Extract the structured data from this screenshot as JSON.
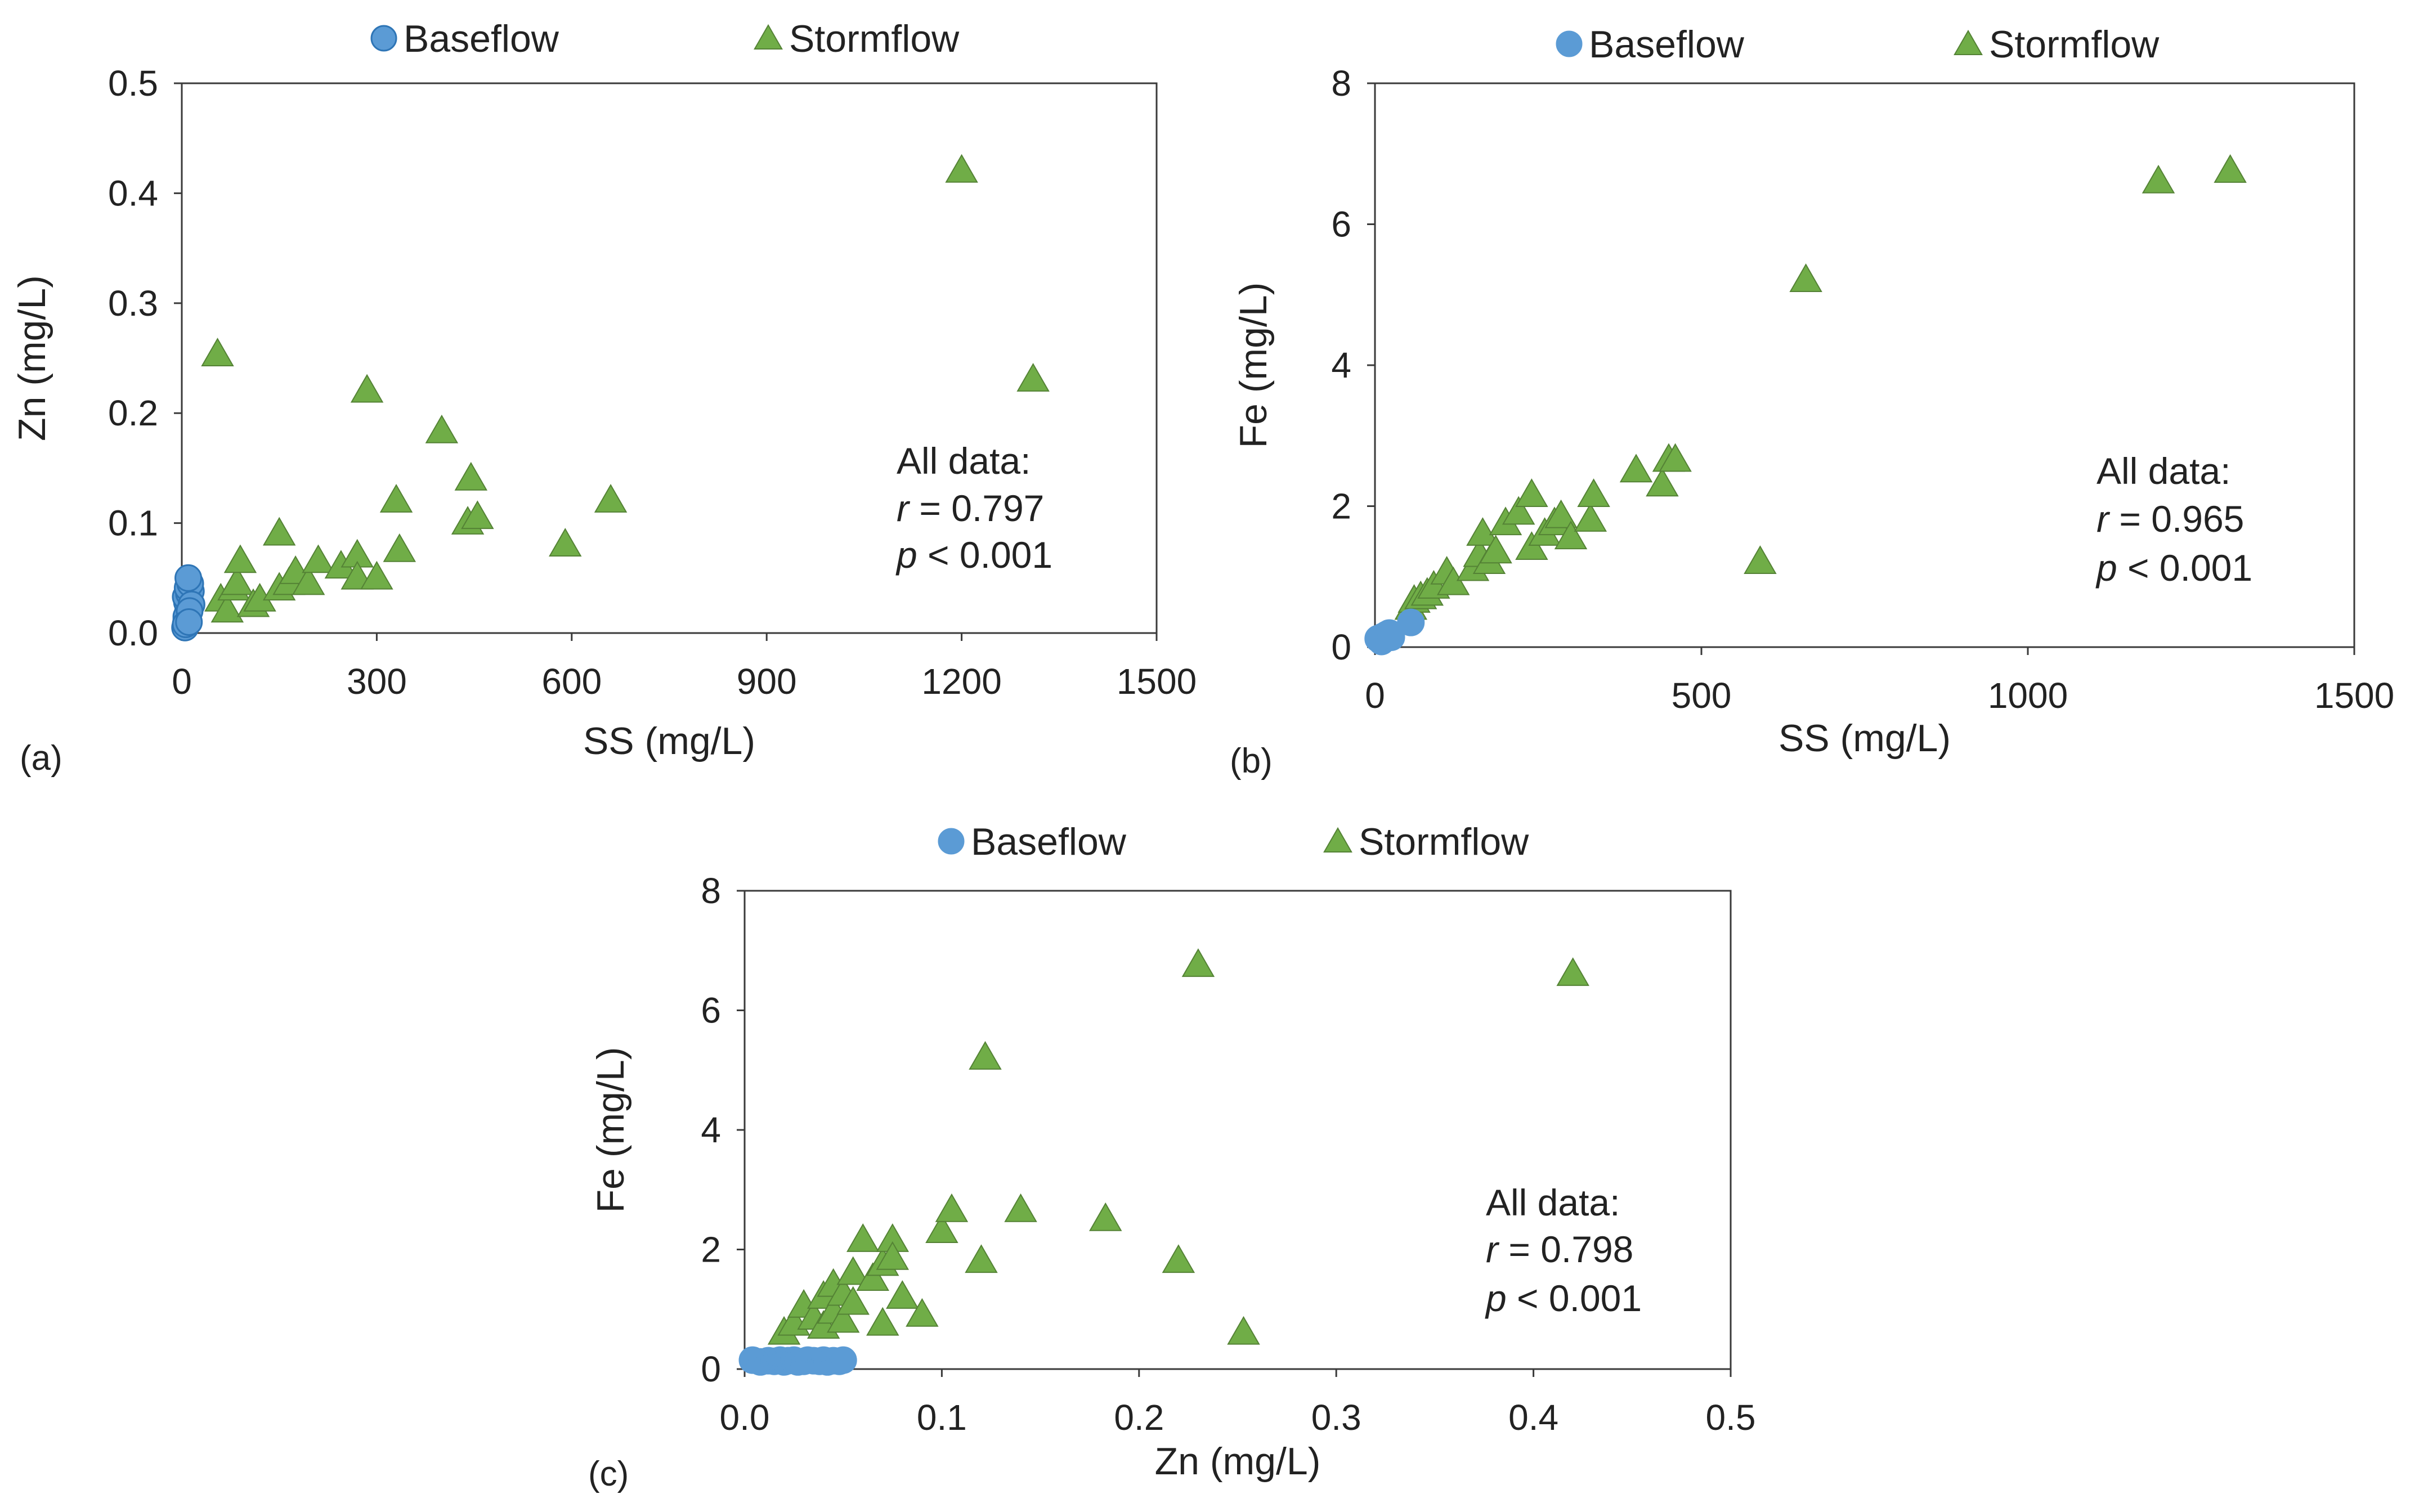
{
  "chart_data": [
    {
      "type": "scatter",
      "panel_label": "(a)",
      "xlabel": "SS (mg/L)",
      "ylabel": "Zn (mg/L)",
      "xlim": [
        0,
        1500
      ],
      "ylim": [
        0,
        0.5
      ],
      "xticks": [
        "0",
        "300",
        "600",
        "900",
        "1200",
        "1500"
      ],
      "yticks": [
        "0.0",
        "0.1",
        "0.2",
        "0.3",
        "0.4",
        "0.5"
      ],
      "legend": {
        "placement": "top",
        "entries": [
          "Baseflow",
          "Stormflow"
        ]
      },
      "annotation": {
        "line1": "All data:",
        "r_symbol": "r",
        "r_text": " = 0.797",
        "p_symbol": "p",
        "p_text": " < 0.001"
      },
      "series": [
        {
          "name": "Baseflow",
          "marker": "circle",
          "color": "#5B9BD5",
          "edge": "#2E75B6",
          "points": [
            [
              5,
              0.005
            ],
            [
              7,
              0.012
            ],
            [
              9,
              0.018
            ],
            [
              10,
              0.022
            ],
            [
              8,
              0.028
            ],
            [
              12,
              0.03
            ],
            [
              6,
              0.033
            ],
            [
              11,
              0.036
            ],
            [
              14,
              0.038
            ],
            [
              9,
              0.041
            ],
            [
              13,
              0.045
            ],
            [
              10,
              0.05
            ],
            [
              15,
              0.026
            ],
            [
              7,
              0.015
            ],
            [
              12,
              0.02
            ],
            [
              6,
              0.008
            ],
            [
              11,
              0.01
            ]
          ]
        },
        {
          "name": "Stormflow",
          "marker": "triangle",
          "color": "#70AD47",
          "edge": "#548235",
          "points": [
            [
              55,
              0.253
            ],
            [
              60,
              0.03
            ],
            [
              70,
              0.02
            ],
            [
              80,
              0.04
            ],
            [
              85,
              0.045
            ],
            [
              90,
              0.065
            ],
            [
              110,
              0.025
            ],
            [
              120,
              0.03
            ],
            [
              150,
              0.09
            ],
            [
              150,
              0.04
            ],
            [
              165,
              0.045
            ],
            [
              175,
              0.055
            ],
            [
              195,
              0.045
            ],
            [
              210,
              0.065
            ],
            [
              245,
              0.06
            ],
            [
              270,
              0.07
            ],
            [
              270,
              0.05
            ],
            [
              285,
              0.22
            ],
            [
              300,
              0.05
            ],
            [
              330,
              0.12
            ],
            [
              335,
              0.075
            ],
            [
              400,
              0.183
            ],
            [
              440,
              0.1
            ],
            [
              445,
              0.14
            ],
            [
              455,
              0.105
            ],
            [
              590,
              0.08
            ],
            [
              660,
              0.12
            ],
            [
              1200,
              0.42
            ],
            [
              1310,
              0.23
            ]
          ]
        }
      ]
    },
    {
      "type": "scatter",
      "panel_label": "(b)",
      "xlabel": "SS (mg/L)",
      "ylabel": "Fe (mg/L)",
      "xlim": [
        0,
        1500
      ],
      "ylim": [
        0,
        8
      ],
      "xticks": [
        "0",
        "500",
        "1000",
        "1500"
      ],
      "yticks": [
        "0",
        "2",
        "4",
        "6",
        "8"
      ],
      "legend": {
        "placement": "top",
        "entries": [
          "Baseflow",
          "Stormflow"
        ]
      },
      "annotation": {
        "line1": "All data:",
        "r_symbol": "r",
        "r_text": " = 0.965",
        "p_symbol": "p",
        "p_text": " < 0.001"
      },
      "series": [
        {
          "name": "Baseflow",
          "marker": "circle",
          "color": "#5B9BD5",
          "edge": "#5B9BD5",
          "points": [
            [
              5,
              0.12
            ],
            [
              8,
              0.1
            ],
            [
              12,
              0.15
            ],
            [
              15,
              0.12
            ],
            [
              18,
              0.18
            ],
            [
              22,
              0.2
            ],
            [
              10,
              0.08
            ],
            [
              25,
              0.14
            ],
            [
              55,
              0.35
            ]
          ]
        },
        {
          "name": "Stormflow",
          "marker": "triangle",
          "color": "#70AD47",
          "edge": "#548235",
          "points": [
            [
              55,
              0.55
            ],
            [
              60,
              0.65
            ],
            [
              70,
              0.7
            ],
            [
              80,
              0.75
            ],
            [
              90,
              0.85
            ],
            [
              110,
              1.05
            ],
            [
              120,
              0.9
            ],
            [
              150,
              1.1
            ],
            [
              160,
              1.3
            ],
            [
              165,
              1.6
            ],
            [
              175,
              1.2
            ],
            [
              185,
              1.35
            ],
            [
              200,
              1.75
            ],
            [
              220,
              1.9
            ],
            [
              240,
              2.15
            ],
            [
              240,
              1.4
            ],
            [
              260,
              1.6
            ],
            [
              275,
              1.75
            ],
            [
              285,
              1.85
            ],
            [
              300,
              1.55
            ],
            [
              330,
              1.8
            ],
            [
              335,
              2.15
            ],
            [
              400,
              2.5
            ],
            [
              440,
              2.3
            ],
            [
              450,
              2.65
            ],
            [
              460,
              2.65
            ],
            [
              590,
              1.2
            ],
            [
              660,
              5.2
            ],
            [
              1200,
              6.6
            ],
            [
              1310,
              6.75
            ]
          ]
        }
      ]
    },
    {
      "type": "scatter",
      "panel_label": "(c)",
      "xlabel": "Zn (mg/L)",
      "ylabel": "Fe (mg/L)",
      "xlim": [
        0,
        0.5
      ],
      "ylim": [
        0,
        8
      ],
      "xticks": [
        "0.0",
        "0.1",
        "0.2",
        "0.3",
        "0.4",
        "0.5"
      ],
      "yticks": [
        "0",
        "2",
        "4",
        "6",
        "8"
      ],
      "legend": {
        "placement": "top",
        "entries": [
          "Baseflow",
          "Stormflow"
        ]
      },
      "annotation": {
        "line1": "All data:",
        "r_symbol": "r",
        "r_text": " = 0.798",
        "p_symbol": "p",
        "p_text": " < 0.001"
      },
      "series": [
        {
          "name": "Baseflow",
          "marker": "circle",
          "color": "#5B9BD5",
          "edge": "#5B9BD5",
          "points": [
            [
              0.004,
              0.15
            ],
            [
              0.008,
              0.12
            ],
            [
              0.012,
              0.14
            ],
            [
              0.015,
              0.13
            ],
            [
              0.018,
              0.15
            ],
            [
              0.02,
              0.12
            ],
            [
              0.022,
              0.14
            ],
            [
              0.025,
              0.15
            ],
            [
              0.027,
              0.12
            ],
            [
              0.03,
              0.13
            ],
            [
              0.032,
              0.15
            ],
            [
              0.035,
              0.14
            ],
            [
              0.038,
              0.13
            ],
            [
              0.04,
              0.15
            ],
            [
              0.042,
              0.12
            ],
            [
              0.045,
              0.14
            ],
            [
              0.048,
              0.13
            ],
            [
              0.05,
              0.15
            ]
          ]
        },
        {
          "name": "Stormflow",
          "marker": "triangle",
          "color": "#70AD47",
          "edge": "#548235",
          "points": [
            [
              0.02,
              0.6
            ],
            [
              0.025,
              0.75
            ],
            [
              0.03,
              1.05
            ],
            [
              0.035,
              0.85
            ],
            [
              0.04,
              0.7
            ],
            [
              0.04,
              1.2
            ],
            [
              0.045,
              0.95
            ],
            [
              0.045,
              1.4
            ],
            [
              0.05,
              1.25
            ],
            [
              0.05,
              0.8
            ],
            [
              0.055,
              1.1
            ],
            [
              0.055,
              1.6
            ],
            [
              0.06,
              2.15
            ],
            [
              0.065,
              1.5
            ],
            [
              0.07,
              0.75
            ],
            [
              0.07,
              1.75
            ],
            [
              0.075,
              2.15
            ],
            [
              0.075,
              1.85
            ],
            [
              0.08,
              1.2
            ],
            [
              0.09,
              0.9
            ],
            [
              0.1,
              2.3
            ],
            [
              0.105,
              2.65
            ],
            [
              0.12,
              1.8
            ],
            [
              0.122,
              5.2
            ],
            [
              0.14,
              2.65
            ],
            [
              0.183,
              2.5
            ],
            [
              0.22,
              1.8
            ],
            [
              0.23,
              6.75
            ],
            [
              0.253,
              0.6
            ],
            [
              0.42,
              6.6
            ]
          ]
        }
      ]
    }
  ]
}
